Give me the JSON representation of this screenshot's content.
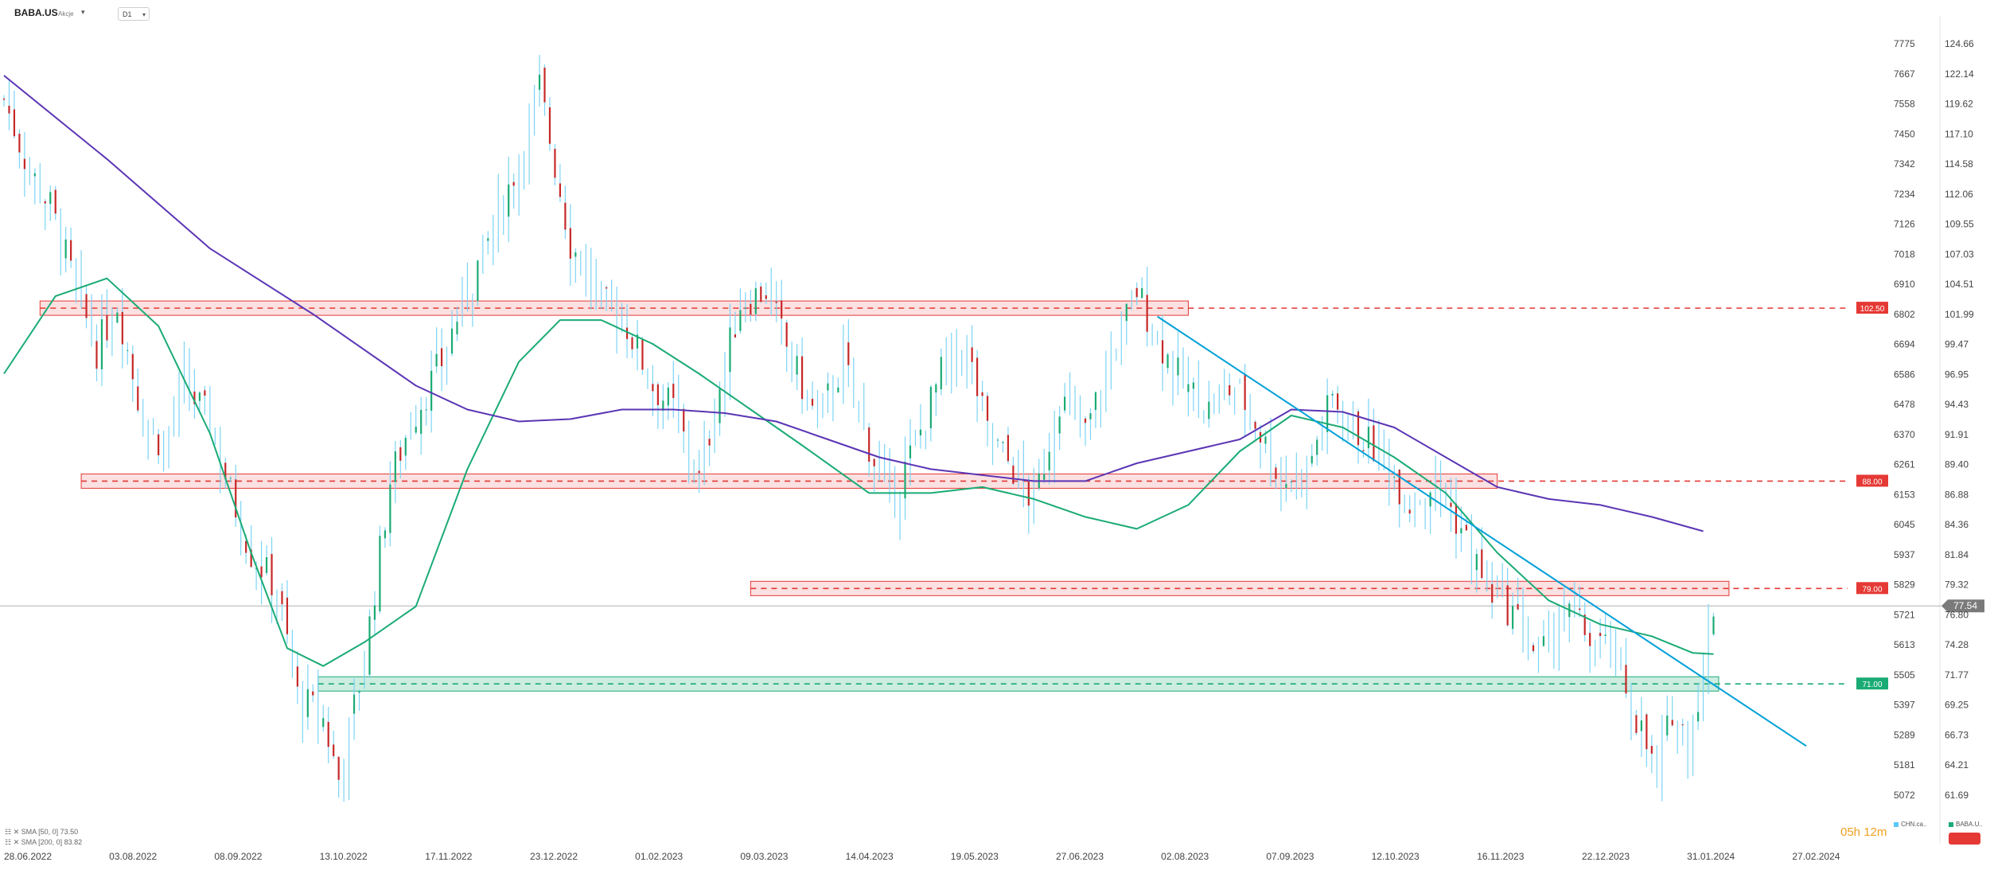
{
  "header": {
    "symbol": "BABA.US",
    "asset_type": "Akcje",
    "timeframe": "D1"
  },
  "indicators": [
    {
      "label": "SMA [50, 0] 73.50",
      "color": "#1aab75"
    },
    {
      "label": "SMA [200, 0] 83.82",
      "color": "#5b35b5"
    }
  ],
  "timer": {
    "hours": "05h",
    "minutes": "12m"
  },
  "legend": [
    {
      "label": "CHN.ca..",
      "color": "#5ac8fa"
    },
    {
      "label": "BABA.U..",
      "color": "#1aab75"
    }
  ],
  "chart_data": {
    "type": "candlestick",
    "x_labels": [
      "28.06.2022",
      "03.08.2022",
      "08.09.2022",
      "13.10.2022",
      "17.11.2022",
      "23.12.2022",
      "01.02.2023",
      "09.03.2023",
      "14.04.2023",
      "19.05.2023",
      "27.06.2023",
      "02.08.2023",
      "07.09.2023",
      "12.10.2023",
      "16.11.2023",
      "22.12.2023",
      "31.01.2024",
      "27.02.2024"
    ],
    "y_right_ticks": [
      124.66,
      122.14,
      119.62,
      117.1,
      114.58,
      112.06,
      109.55,
      107.03,
      104.51,
      101.99,
      99.47,
      96.95,
      94.43,
      91.91,
      89.4,
      86.88,
      84.36,
      81.84,
      79.32,
      76.8,
      74.28,
      71.77,
      69.25,
      66.73,
      64.21,
      61.69
    ],
    "y_right_range": [
      59.2,
      126.0
    ],
    "y_left_ticks": [
      7775,
      7667,
      7558,
      7450,
      7342,
      7234,
      7126,
      7018,
      6910,
      6802,
      6694,
      6586,
      6478,
      6370,
      6261,
      6153,
      6045,
      5937,
      5829,
      5721,
      5613,
      5505,
      5397,
      5289,
      5181,
      5072
    ],
    "series": [
      {
        "name": "BABA.U..",
        "type": "candlestick",
        "role": "price",
        "price_path": [
          [
            0,
            120
          ],
          [
            5,
            114
          ],
          [
            9,
            111
          ],
          [
            14,
            104
          ],
          [
            18,
            99
          ],
          [
            22,
            103
          ],
          [
            27,
            93
          ],
          [
            31,
            91
          ],
          [
            35,
            96
          ],
          [
            40,
            93
          ],
          [
            44,
            87
          ],
          [
            48,
            82
          ],
          [
            53,
            79
          ],
          [
            57,
            70
          ],
          [
            62,
            68
          ],
          [
            65,
            63
          ],
          [
            70,
            73
          ],
          [
            75,
            88
          ],
          [
            79,
            93
          ],
          [
            85,
            98
          ],
          [
            89,
            103
          ],
          [
            95,
            109
          ],
          [
            100,
            115
          ],
          [
            104,
            121
          ],
          [
            110,
            108
          ],
          [
            116,
            103
          ],
          [
            121,
            101
          ],
          [
            126,
            96
          ],
          [
            130,
            94
          ],
          [
            135,
            88
          ],
          [
            139,
            96
          ],
          [
            143,
            103
          ],
          [
            148,
            104
          ],
          [
            153,
            98
          ],
          [
            158,
            93
          ],
          [
            163,
            98
          ],
          [
            168,
            91
          ],
          [
            172,
            86
          ],
          [
            177,
            91
          ],
          [
            182,
            97
          ],
          [
            187,
            99
          ],
          [
            191,
            92
          ],
          [
            196,
            89
          ],
          [
            200,
            86
          ],
          [
            205,
            95
          ],
          [
            210,
            92
          ],
          [
            214,
            97
          ],
          [
            220,
            104
          ],
          [
            224,
            100
          ],
          [
            229,
            96
          ],
          [
            234,
            94
          ],
          [
            239,
            96
          ],
          [
            243,
            93
          ],
          [
            248,
            88
          ],
          [
            253,
            89
          ],
          [
            258,
            95
          ],
          [
            263,
            92
          ],
          [
            268,
            90
          ],
          [
            273,
            86
          ],
          [
            278,
            88
          ],
          [
            283,
            84
          ],
          [
            288,
            79
          ],
          [
            293,
            77
          ],
          [
            298,
            73
          ],
          [
            303,
            77
          ],
          [
            308,
            75
          ],
          [
            313,
            73
          ],
          [
            318,
            67
          ],
          [
            321,
            63
          ],
          [
            324,
            69
          ],
          [
            327,
            66
          ],
          [
            330,
            72
          ],
          [
            332,
            77.5
          ]
        ],
        "last": 77.54
      },
      {
        "name": "SMA 50",
        "role": "sma50",
        "points": [
          [
            0,
            97
          ],
          [
            10,
            103.5
          ],
          [
            20,
            105
          ],
          [
            30,
            101
          ],
          [
            40,
            92
          ],
          [
            48,
            82
          ],
          [
            55,
            74
          ],
          [
            62,
            72.5
          ],
          [
            70,
            74.5
          ],
          [
            80,
            77.5
          ],
          [
            90,
            89
          ],
          [
            100,
            98
          ],
          [
            108,
            101.5
          ],
          [
            116,
            101.5
          ],
          [
            126,
            99.5
          ],
          [
            135,
            97
          ],
          [
            145,
            94
          ],
          [
            155,
            91
          ],
          [
            168,
            87
          ],
          [
            180,
            87
          ],
          [
            190,
            87.5
          ],
          [
            200,
            86.5
          ],
          [
            210,
            85
          ],
          [
            220,
            84
          ],
          [
            230,
            86
          ],
          [
            240,
            90.5
          ],
          [
            250,
            93.5
          ],
          [
            260,
            92.5
          ],
          [
            270,
            90
          ],
          [
            280,
            87
          ],
          [
            290,
            82
          ],
          [
            300,
            78
          ],
          [
            310,
            76
          ],
          [
            320,
            75
          ],
          [
            328,
            73.6
          ],
          [
            332,
            73.5
          ]
        ]
      },
      {
        "name": "SMA 200",
        "role": "sma200",
        "points": [
          [
            0,
            122
          ],
          [
            20,
            115
          ],
          [
            40,
            107.5
          ],
          [
            60,
            102
          ],
          [
            80,
            96
          ],
          [
            90,
            94
          ],
          [
            100,
            93
          ],
          [
            110,
            93.2
          ],
          [
            120,
            94
          ],
          [
            130,
            94
          ],
          [
            140,
            93.7
          ],
          [
            150,
            93
          ],
          [
            160,
            91.5
          ],
          [
            170,
            90
          ],
          [
            180,
            89
          ],
          [
            200,
            88
          ],
          [
            210,
            88
          ],
          [
            220,
            89.5
          ],
          [
            240,
            91.5
          ],
          [
            250,
            94
          ],
          [
            260,
            93.8
          ],
          [
            270,
            92.5
          ],
          [
            280,
            90
          ],
          [
            290,
            87.5
          ],
          [
            300,
            86.5
          ],
          [
            310,
            86
          ],
          [
            320,
            85
          ],
          [
            330,
            83.8
          ]
        ]
      }
    ],
    "zones": [
      {
        "label": "102.50",
        "role": "resistance",
        "color": "#e53935",
        "level": 102.5,
        "from": 7,
        "to": 230
      },
      {
        "label": "88.00",
        "role": "resistance",
        "color": "#e53935",
        "level": 88.0,
        "from": 15,
        "to": 290
      },
      {
        "label": "79.00",
        "role": "resistance",
        "color": "#e53935",
        "level": 79.0,
        "from": 145,
        "to": 335
      },
      {
        "label": "71.00",
        "role": "support",
        "color": "#1aab75",
        "level": 71.0,
        "from": 61,
        "to": 333
      }
    ],
    "trendline": {
      "color": "#00a0d8",
      "from": [
        224,
        101.8
      ],
      "to": [
        350,
        65.8
      ]
    },
    "current_price": {
      "label": "77.54",
      "value": 77.54
    },
    "bars_count": 350
  }
}
